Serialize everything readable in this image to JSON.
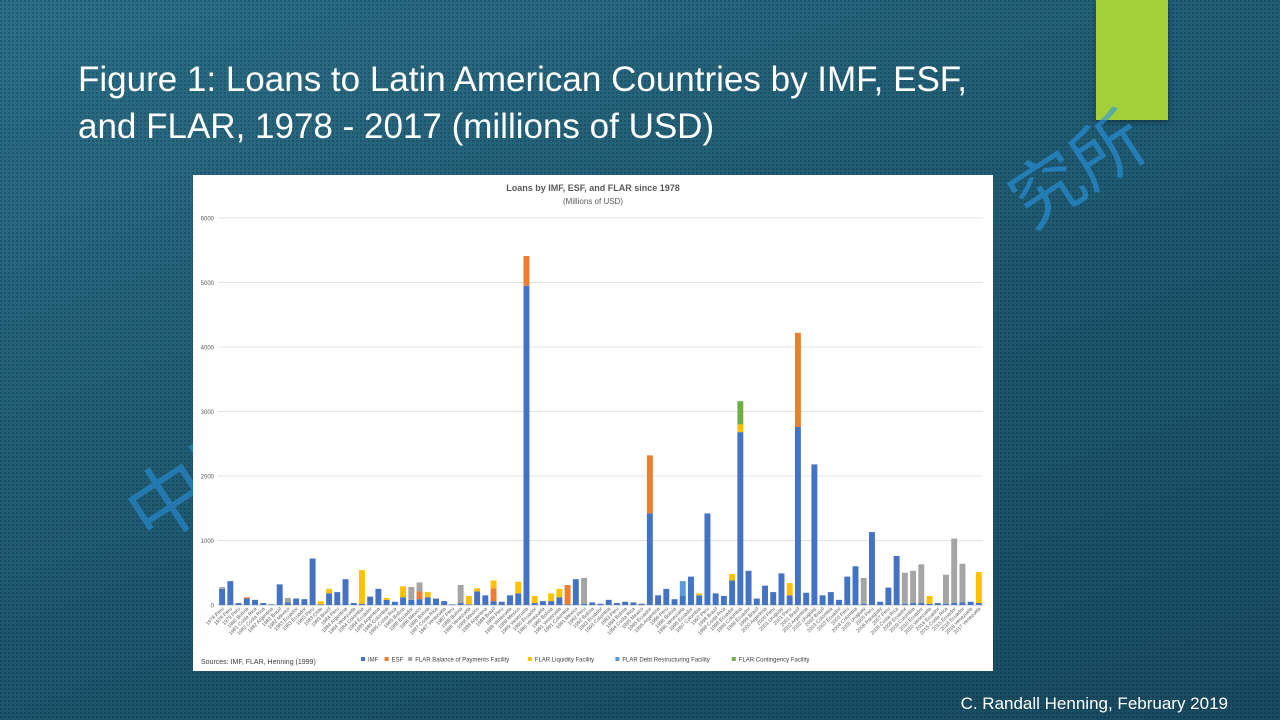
{
  "slide": {
    "title_line1": "Figure 1: Loans to Latin American Countries by IMF, ESF,",
    "title_line2": "and FLAR, 1978 - 2017 (millions of USD)",
    "credit": "C. Randall Henning, February 2019",
    "watermark_left": "中国",
    "watermark_right": "究所",
    "accent_color": "#a4cf38"
  },
  "chart_data": {
    "type": "bar",
    "stacked": true,
    "title": "Loans by IMF, ESF, and FLAR since 1978",
    "subtitle": "(Millions of USD)",
    "source": "Sources: IMF, FLAR, Henning (1999)",
    "ylim": [
      0,
      6000
    ],
    "yticks": [
      0,
      1000,
      2000,
      3000,
      4000,
      5000,
      6000
    ],
    "grid": true,
    "legend_position": "bottom",
    "series": [
      {
        "name": "IMF",
        "color": "#4472c4"
      },
      {
        "name": "ESF",
        "color": "#ed7d31"
      },
      {
        "name": "FLAR Balance of Payments Facility",
        "color": "#a5a5a5"
      },
      {
        "name": "FLAR Liquidity Facility",
        "color": "#ffc000"
      },
      {
        "name": "FLAR Debt Restructuring Facility",
        "color": "#5b9bd5"
      },
      {
        "name": "FLAR Contingency Facility",
        "color": "#70ad47"
      }
    ],
    "categories": [
      "1978 Peru",
      "1978 Peru",
      "1979 Peru",
      "1980 Bolivia",
      "1981 Costa Rica",
      "1982 Costa Rica",
      "1982 Argentina",
      "1982 Brazil",
      "1982 Mexico",
      "1983 Ecuador",
      "1983 Ecuador",
      "1983 Peru",
      "1983 Chile",
      "1983 Brazil",
      "1984 Peru",
      "1984 Argentina",
      "1984 Venezuela",
      "1984 Colombia",
      "1984 Ecuador",
      "1985 Argentina",
      "1985 Colombia",
      "1985 Costa Rica",
      "1985 Bolivia",
      "1986 Ecuador",
      "1986 Mexico",
      "1986 Bolivia",
      "1987 Costa Rica",
      "1987 Venezuela",
      "1987 Peru",
      "1988 Bolivia",
      "1988 Venezuela",
      "1988 Mexico",
      "1988 Argentina",
      "1988 Brazil",
      "1989 Peru",
      "1989 Venezuela",
      "1989 Mexico",
      "1989 Venezuela",
      "1990 Ecuador",
      "1990 Venezuela",
      "1990 Bolivia",
      "1991 Venezuela",
      "1991 Colombia",
      "1991 Mexico",
      "1992 Peru",
      "1992 Bolivia",
      "1993 Ecuador",
      "1993 Colombia",
      "1993 Peru",
      "1994 Bolivia",
      "1994 Costa Rica",
      "1995 Mexico",
      "1995 Ecuador",
      "1995 Argentina",
      "1996 Peru",
      "1996 Bolivia",
      "1996 Venezuela",
      "1996 Ecuador",
      "1997 Colombia",
      "1997 Peru",
      "1998 Brazil",
      "1998 Costa Rica",
      "1998 Ecuador",
      "1999 Colombia",
      "1999 Ecuador",
      "1999 Brazil",
      "2000 Argentina",
      "2000 Peru",
      "2001 Uruguay",
      "2001 Peru",
      "2001 Brazil",
      "2002 Argentina",
      "2002 Uruguay",
      "2002 Brazil",
      "2003 Colombia",
      "2003 Ecuador",
      "2003 Peru",
      "2004 Colombia",
      "2005 Uruguay",
      "2005 Peru",
      "2006 Paraguay",
      "2007 Peru",
      "2008 Costa Rica",
      "2009 Ecuador",
      "2009 Colombia",
      "2010 Ecuador",
      "2010 Venezuela",
      "2014 Ecuador",
      "2015 Costa Rica",
      "2015 Ecuador",
      "2016 Ecuador",
      "2016 Venezuela",
      "2017 Venezuela"
    ],
    "values": {
      "IMF": [
        250,
        370,
        30,
        100,
        80,
        30,
        10,
        320,
        40,
        100,
        90,
        720,
        10,
        180,
        200,
        400,
        30,
        20,
        130,
        250,
        80,
        50,
        120,
        80,
        90,
        120,
        100,
        60,
        10,
        30,
        10,
        210,
        150,
        60,
        50,
        150,
        180,
        4950,
        30,
        60,
        60,
        120,
        10,
        400,
        20,
        40,
        20,
        80,
        30,
        50,
        40,
        20,
        1420,
        150,
        250,
        90,
        140,
        440,
        150,
        1420,
        180,
        140,
        380,
        2680,
        530,
        100,
        300,
        200,
        490,
        150,
        2760,
        190,
        2180,
        150,
        200,
        80,
        440,
        600,
        20,
        1130,
        50,
        270,
        760,
        20,
        30,
        30,
        20,
        30,
        20,
        30,
        40,
        50,
        30
      ],
      "ESF": [
        0,
        0,
        0,
        20,
        0,
        0,
        0,
        0,
        0,
        0,
        0,
        0,
        0,
        0,
        0,
        0,
        0,
        0,
        0,
        0,
        0,
        0,
        0,
        0,
        120,
        0,
        0,
        0,
        0,
        0,
        0,
        0,
        0,
        200,
        0,
        0,
        0,
        460,
        0,
        0,
        0,
        0,
        300,
        0,
        0,
        0,
        0,
        0,
        0,
        0,
        0,
        0,
        900,
        0,
        0,
        0,
        0,
        0,
        0,
        0,
        0,
        0,
        0,
        0,
        0,
        0,
        0,
        0,
        0,
        0,
        1460,
        0,
        0,
        0,
        0,
        0,
        0,
        0,
        0,
        0,
        0,
        0,
        0,
        0,
        0,
        0,
        0,
        0,
        0,
        0,
        0,
        0,
        0
      ],
      "FLAR Balance of Payments Facility": [
        30,
        0,
        0,
        0,
        0,
        0,
        0,
        0,
        70,
        0,
        0,
        0,
        0,
        0,
        0,
        0,
        0,
        0,
        0,
        0,
        0,
        0,
        0,
        200,
        140,
        0,
        0,
        0,
        0,
        280,
        0,
        0,
        0,
        0,
        0,
        0,
        0,
        0,
        0,
        0,
        0,
        0,
        0,
        0,
        400,
        0,
        0,
        0,
        0,
        0,
        0,
        0,
        0,
        0,
        0,
        0,
        0,
        0,
        0,
        0,
        0,
        0,
        0,
        0,
        0,
        0,
        0,
        0,
        0,
        0,
        0,
        0,
        0,
        0,
        0,
        0,
        0,
        0,
        400,
        0,
        0,
        0,
        0,
        480,
        500,
        600,
        0,
        0,
        450,
        1000,
        600,
        0,
        0
      ],
      "FLAR Liquidity Facility": [
        0,
        0,
        0,
        0,
        0,
        0,
        0,
        0,
        0,
        0,
        0,
        0,
        50,
        70,
        0,
        0,
        0,
        520,
        0,
        0,
        30,
        0,
        170,
        0,
        0,
        80,
        0,
        0,
        0,
        0,
        130,
        50,
        0,
        120,
        0,
        0,
        180,
        0,
        110,
        0,
        120,
        130,
        0,
        0,
        0,
        0,
        0,
        0,
        0,
        0,
        0,
        0,
        0,
        0,
        0,
        0,
        0,
        0,
        30,
        0,
        0,
        0,
        100,
        120,
        0,
        0,
        0,
        0,
        0,
        190,
        0,
        0,
        0,
        0,
        0,
        0,
        0,
        0,
        0,
        0,
        0,
        0,
        0,
        0,
        0,
        0,
        120,
        0,
        0,
        0,
        0,
        0,
        480
      ],
      "FLAR Debt Restructuring Facility": [
        0,
        0,
        0,
        0,
        0,
        0,
        0,
        0,
        0,
        0,
        0,
        0,
        0,
        0,
        0,
        0,
        0,
        0,
        0,
        0,
        0,
        0,
        0,
        0,
        0,
        0,
        0,
        0,
        0,
        0,
        0,
        0,
        0,
        0,
        0,
        0,
        0,
        0,
        0,
        0,
        0,
        0,
        0,
        0,
        0,
        0,
        0,
        0,
        0,
        0,
        0,
        0,
        0,
        0,
        0,
        0,
        230,
        0,
        0,
        0,
        0,
        0,
        0,
        0,
        0,
        0,
        0,
        0,
        0,
        0,
        0,
        0,
        0,
        0,
        0,
        0,
        0,
        0,
        0,
        0,
        0,
        0,
        0,
        0,
        0,
        0,
        0,
        0,
        0,
        0,
        0,
        0,
        0
      ],
      "FLAR Contingency Facility": [
        0,
        0,
        0,
        0,
        0,
        0,
        0,
        0,
        0,
        0,
        0,
        0,
        0,
        0,
        0,
        0,
        0,
        0,
        0,
        0,
        0,
        0,
        0,
        0,
        0,
        0,
        0,
        0,
        0,
        0,
        0,
        0,
        0,
        0,
        0,
        0,
        0,
        0,
        0,
        0,
        0,
        0,
        0,
        0,
        0,
        0,
        0,
        0,
        0,
        0,
        0,
        0,
        0,
        0,
        0,
        0,
        0,
        0,
        0,
        0,
        0,
        0,
        0,
        360,
        0,
        0,
        0,
        0,
        0,
        0,
        0,
        0,
        0,
        0,
        0,
        0,
        0,
        0,
        0,
        0,
        0,
        0,
        0,
        0,
        0,
        0,
        0,
        0,
        0,
        0,
        0,
        0,
        0
      ]
    }
  }
}
